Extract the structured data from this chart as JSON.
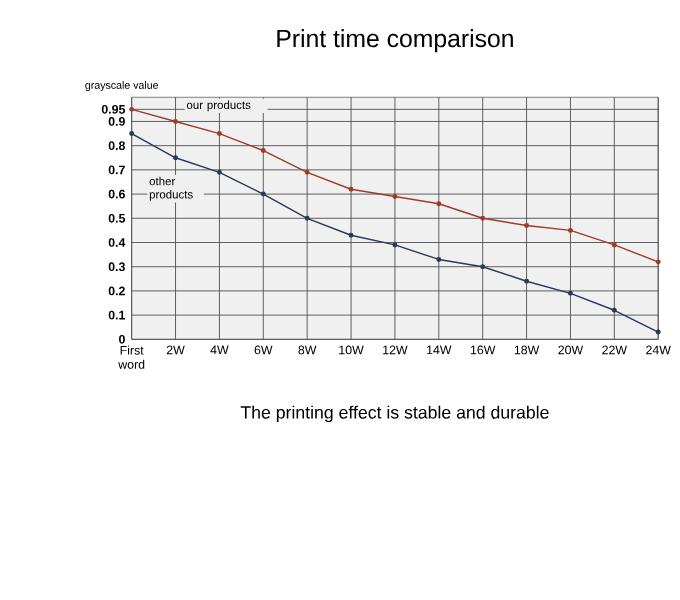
{
  "chart_data": {
    "type": "line",
    "title": "Print time comparison",
    "ylabel": "grayscale value",
    "categories": [
      "First word",
      "2W",
      "4W",
      "6W",
      "8W",
      "10W",
      "12W",
      "14W",
      "16W",
      "18W",
      "20W",
      "22W",
      "24W"
    ],
    "series": [
      {
        "name": "our products",
        "color": "#a03a2a",
        "values": [
          0.95,
          0.9,
          0.85,
          0.78,
          0.69,
          0.62,
          0.59,
          0.56,
          0.5,
          0.47,
          0.45,
          0.39,
          0.32
        ]
      },
      {
        "name": "other products",
        "color": "#2a3a5a",
        "values": [
          0.85,
          0.75,
          0.69,
          0.6,
          0.5,
          0.43,
          0.39,
          0.33,
          0.3,
          0.24,
          0.19,
          0.12,
          0.03
        ]
      }
    ],
    "ylim": [
      0,
      1
    ],
    "yticks": [
      0,
      0.1,
      0.2,
      0.3,
      0.4,
      0.5,
      0.6,
      0.7,
      0.8,
      0.9,
      0.95
    ],
    "grid": true,
    "legend": false,
    "marker": "circle",
    "line_style": "solid",
    "annotations": [
      "The printing effect is stable and durable"
    ]
  }
}
